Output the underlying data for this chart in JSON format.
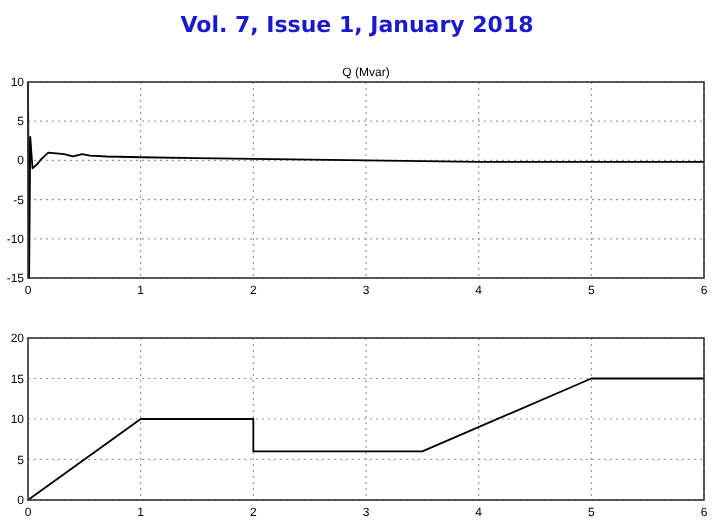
{
  "chart_data": [
    {
      "type": "line",
      "title": "Vol. 7, Issue 1, January 2018",
      "subtitle": "Q (Mvar)",
      "xlim": [
        0,
        6
      ],
      "xticks": [
        0,
        1,
        2,
        3,
        4,
        5,
        6
      ],
      "ylim": [
        -15,
        10
      ],
      "yticks": [
        -15,
        -10,
        -5,
        0,
        5,
        10
      ],
      "grid": true,
      "series": [
        {
          "color": "#000000",
          "x": [
            0,
            0.01,
            0.02,
            0.04,
            0.08,
            0.12,
            0.18,
            0.25,
            0.32,
            0.4,
            0.48,
            0.55,
            0.7,
            1,
            1.5,
            2,
            2.5,
            3,
            3.5,
            4,
            4.5,
            5,
            5.5,
            6
          ],
          "values": [
            10,
            -15,
            3,
            -1,
            -0.5,
            0.2,
            1,
            0.9,
            0.8,
            0.5,
            0.8,
            0.6,
            0.5,
            0.4,
            0.3,
            0.2,
            0.1,
            0,
            -0.1,
            -0.2,
            -0.2,
            -0.2,
            -0.2,
            -0.2
          ]
        }
      ]
    },
    {
      "type": "line",
      "xlim": [
        0,
        6
      ],
      "xticks": [
        0,
        1,
        2,
        3,
        4,
        5,
        6
      ],
      "ylim": [
        0,
        20
      ],
      "yticks": [
        0,
        5,
        10,
        15,
        20
      ],
      "grid": true,
      "series": [
        {
          "color": "#000000",
          "x": [
            0,
            1,
            2,
            2,
            3.5,
            5,
            6
          ],
          "values": [
            0,
            10,
            10,
            6,
            6,
            15,
            15
          ]
        }
      ]
    }
  ]
}
